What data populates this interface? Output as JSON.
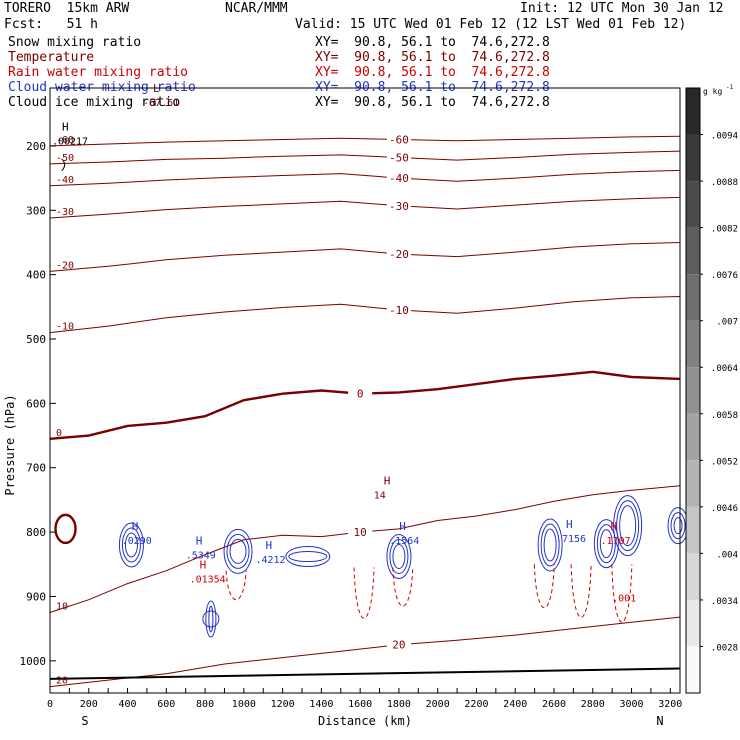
{
  "header": {
    "model": "TORERO  15km ARW",
    "center": "NCAR/MMM",
    "init": "Init: 12 UTC Mon 30 Jan 12",
    "fcst": "Fcst:   51 h",
    "valid": "Valid: 15 UTC Wed 01 Feb 12 (12 LST Wed 01 Feb 12)"
  },
  "colors": {
    "snow": "#000000",
    "temperature": "#7a0000",
    "rain": "#cc0000",
    "cloud_water": "#2233cc",
    "cloud_ice": "#000000",
    "ground": "#000000"
  },
  "chart_data": {
    "type": "cross-section contour",
    "fields": [
      {
        "name": "Snow mixing ratio",
        "xy": "XY=  90.8, 56.1 to  74.6,272.8",
        "color": "#000000"
      },
      {
        "name": "Temperature",
        "xy": "XY=  90.8, 56.1 to  74.6,272.8",
        "color": "#7a0000"
      },
      {
        "name": "Rain water mixing ratio",
        "xy": "XY=  90.8, 56.1 to  74.6,272.8",
        "color": "#cc0000"
      },
      {
        "name": "Cloud water mixing ratio",
        "xy": "XY=  90.8, 56.1 to  74.6,272.8",
        "color": "#2233cc"
      },
      {
        "name": "Cloud ice mixing ratio",
        "xy": "XY=  90.8, 56.1 to  74.6,272.8",
        "color": "#000000"
      }
    ],
    "xlabel": "Distance (km)",
    "ylabel": "Pressure (hPa)",
    "xlim": [
      0,
      3250
    ],
    "ylim": [
      1050,
      110
    ],
    "xticks": [
      0,
      100,
      200,
      300,
      400,
      500,
      600,
      700,
      800,
      900,
      1000,
      1100,
      1200,
      1300,
      1400,
      1500,
      1600,
      1700,
      1800,
      1900,
      2000,
      2100,
      2200,
      2300,
      2400,
      2500,
      2600,
      2700,
      2800,
      2900,
      3000,
      3100,
      3200
    ],
    "xtick_labels": [
      "0",
      "200",
      "400",
      "600",
      "800",
      "1000",
      "1200",
      "1400",
      "1600",
      "1800",
      "2000",
      "2200",
      "2400",
      "2600",
      "2800",
      "3000",
      "3200"
    ],
    "ytick_labels": [
      "200",
      "300",
      "400",
      "500",
      "600",
      "700",
      "800",
      "900",
      "1000"
    ],
    "south_label": "S",
    "north_label": "N",
    "colorbar": {
      "units": "g kg",
      "units_exponent": "-1",
      "labels": [
        ".0094",
        ".0088",
        ".0082",
        ".0076",
        ".007",
        ".0064",
        ".0058",
        ".0052",
        ".0046",
        ".004",
        ".0034",
        ".0028"
      ]
    },
    "temperature_contours": [
      {
        "label": "-60",
        "points": [
          [
            0,
            200
          ],
          [
            300,
            197
          ],
          [
            600,
            194
          ],
          [
            900,
            192
          ],
          [
            1200,
            190
          ],
          [
            1500,
            188
          ],
          [
            1800,
            190
          ],
          [
            2100,
            192
          ],
          [
            2400,
            190
          ],
          [
            2700,
            188
          ],
          [
            3000,
            186
          ],
          [
            3250,
            185
          ]
        ]
      },
      {
        "label": "-50",
        "points": [
          [
            0,
            228
          ],
          [
            300,
            225
          ],
          [
            600,
            221
          ],
          [
            900,
            219
          ],
          [
            1200,
            216
          ],
          [
            1500,
            214
          ],
          [
            1800,
            218
          ],
          [
            2100,
            222
          ],
          [
            2400,
            218
          ],
          [
            2700,
            213
          ],
          [
            3000,
            210
          ],
          [
            3250,
            208
          ]
        ]
      },
      {
        "label": "-40",
        "points": [
          [
            0,
            262
          ],
          [
            300,
            258
          ],
          [
            600,
            253
          ],
          [
            900,
            249
          ],
          [
            1200,
            246
          ],
          [
            1500,
            243
          ],
          [
            1800,
            250
          ],
          [
            2100,
            255
          ],
          [
            2400,
            250
          ],
          [
            2700,
            244
          ],
          [
            3000,
            240
          ],
          [
            3250,
            238
          ]
        ]
      },
      {
        "label": "-30",
        "points": [
          [
            0,
            312
          ],
          [
            300,
            306
          ],
          [
            600,
            299
          ],
          [
            900,
            294
          ],
          [
            1200,
            290
          ],
          [
            1500,
            286
          ],
          [
            1800,
            293
          ],
          [
            2100,
            298
          ],
          [
            2400,
            292
          ],
          [
            2700,
            286
          ],
          [
            3000,
            282
          ],
          [
            3250,
            280
          ]
        ]
      },
      {
        "label": "-20",
        "points": [
          [
            0,
            395
          ],
          [
            300,
            387
          ],
          [
            600,
            377
          ],
          [
            900,
            370
          ],
          [
            1200,
            365
          ],
          [
            1500,
            360
          ],
          [
            1800,
            368
          ],
          [
            2100,
            372
          ],
          [
            2400,
            365
          ],
          [
            2700,
            357
          ],
          [
            3000,
            352
          ],
          [
            3250,
            350
          ]
        ]
      },
      {
        "label": "-10",
        "points": [
          [
            0,
            490
          ],
          [
            300,
            480
          ],
          [
            600,
            467
          ],
          [
            900,
            458
          ],
          [
            1200,
            451
          ],
          [
            1500,
            446
          ],
          [
            1800,
            455
          ],
          [
            2100,
            460
          ],
          [
            2400,
            452
          ],
          [
            2700,
            442
          ],
          [
            3000,
            436
          ],
          [
            3250,
            434
          ]
        ]
      },
      {
        "label": "0",
        "points": [
          [
            0,
            655
          ],
          [
            200,
            650
          ],
          [
            400,
            635
          ],
          [
            600,
            630
          ],
          [
            800,
            620
          ],
          [
            1000,
            595
          ],
          [
            1200,
            585
          ],
          [
            1400,
            580
          ],
          [
            1600,
            585
          ],
          [
            1800,
            583
          ],
          [
            2000,
            578
          ],
          [
            2200,
            570
          ],
          [
            2400,
            562
          ],
          [
            2600,
            557
          ],
          [
            2800,
            551
          ],
          [
            3000,
            559
          ],
          [
            3250,
            562
          ]
        ]
      },
      {
        "label": "10",
        "points": [
          [
            0,
            925
          ],
          [
            200,
            905
          ],
          [
            400,
            880
          ],
          [
            600,
            860
          ],
          [
            800,
            835
          ],
          [
            1000,
            812
          ],
          [
            1200,
            805
          ],
          [
            1400,
            807
          ],
          [
            1600,
            800
          ],
          [
            1800,
            795
          ],
          [
            2000,
            782
          ],
          [
            2200,
            775
          ],
          [
            2400,
            765
          ],
          [
            2600,
            752
          ],
          [
            2800,
            742
          ],
          [
            3000,
            735
          ],
          [
            3250,
            728
          ]
        ]
      },
      {
        "label": "20",
        "points": [
          [
            0,
            1040
          ],
          [
            300,
            1030
          ],
          [
            600,
            1020
          ],
          [
            900,
            1005
          ],
          [
            1200,
            995
          ],
          [
            1500,
            985
          ],
          [
            1800,
            975
          ],
          [
            2100,
            968
          ],
          [
            2400,
            960
          ],
          [
            2700,
            950
          ],
          [
            3000,
            940
          ],
          [
            3250,
            932
          ]
        ]
      }
    ],
    "extrema_labels": [
      {
        "symbol": "L",
        "value": "-67.61",
        "field": "Temperature"
      },
      {
        "symbol": "H",
        "value": ".00217",
        "field": "Snow mixing ratio"
      },
      {
        "symbol": "H",
        "value": "14",
        "field": "Temperature"
      },
      {
        "symbol": "H",
        "value": ".0290",
        "field": "Cloud water mixing ratio"
      },
      {
        "symbol": "H",
        "value": ".5349",
        "field": "Cloud water mixing ratio"
      },
      {
        "symbol": "H",
        "value": ".4212",
        "field": "Cloud water mixing ratio"
      },
      {
        "symbol": "H",
        "value": ".1564",
        "field": "Cloud water mixing ratio"
      },
      {
        "symbol": "H",
        "value": ".7156",
        "field": "Cloud water mixing ratio"
      },
      {
        "symbol": "H",
        "value": ".01354",
        "field": "Rain water mixing ratio"
      },
      {
        "symbol": "H",
        "value": ".1707",
        "field": "Rain water mixing ratio"
      },
      {
        "symbol": "",
        "value": ".001",
        "field": "Rain water mixing ratio"
      }
    ]
  }
}
